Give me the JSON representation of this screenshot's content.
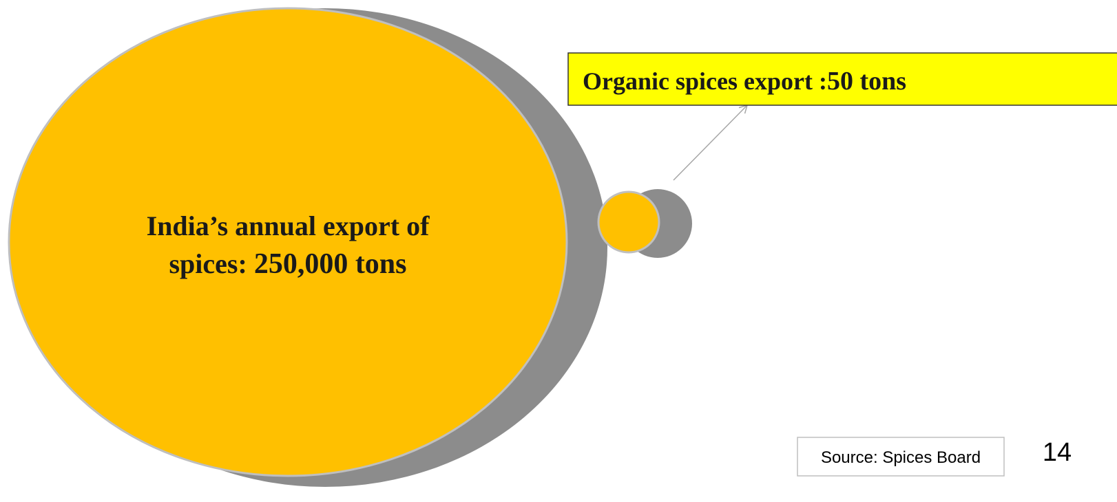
{
  "big_circle": {
    "label_lines": [
      "India’s annual export of",
      "spices:"
    ],
    "value": "250,000 tons"
  },
  "callout": {
    "label": "Organic spices export :",
    "value": "50 tons"
  },
  "source": "Source: Spices Board",
  "page_number": "14"
}
